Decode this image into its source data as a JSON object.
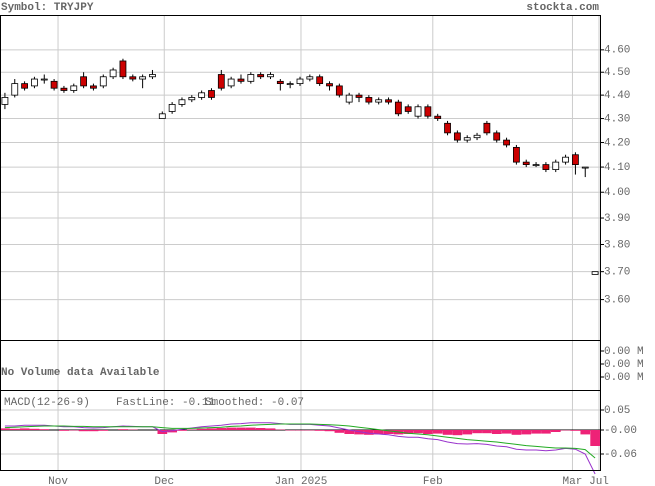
{
  "header": {
    "symbol": "Symbol: TRYJPY",
    "source": "stockta.com"
  },
  "chart_data": [
    {
      "type": "candlestick",
      "log_scale": true,
      "grid": true,
      "up_color": "#ffffff",
      "down_color": "#cc0000",
      "xlim": [
        -0.5,
        60.5
      ],
      "ylim": [
        3.46,
        4.76
      ],
      "xticks": [
        {
          "value": 5.4,
          "label": "Nov"
        },
        {
          "value": 16.2,
          "label": "Dec"
        },
        {
          "value": 30.1,
          "label": "Jan 2025"
        },
        {
          "value": 43.5,
          "label": "Feb"
        },
        {
          "value": 57.7,
          "label": "Mar"
        },
        {
          "value": 60.4,
          "label": "Jul"
        }
      ],
      "yticks": [
        {
          "value": 4.6,
          "label": "4.60"
        },
        {
          "value": 4.5,
          "label": "4.50"
        },
        {
          "value": 4.4,
          "label": "4.40"
        },
        {
          "value": 4.3,
          "label": "4.30"
        },
        {
          "value": 4.2,
          "label": "4.20"
        },
        {
          "value": 4.1,
          "label": "4.10"
        },
        {
          "value": 4.0,
          "label": "4.00"
        },
        {
          "value": 3.9,
          "label": "3.90"
        },
        {
          "value": 3.8,
          "label": "3.80"
        },
        {
          "value": 3.7,
          "label": "3.70"
        },
        {
          "value": 3.6,
          "label": "3.60"
        }
      ],
      "open": [
        4.36,
        4.4,
        4.45,
        4.44,
        4.47,
        4.46,
        4.43,
        4.42,
        4.48,
        4.44,
        4.44,
        4.48,
        4.55,
        4.48,
        4.47,
        4.48,
        4.3,
        4.33,
        4.36,
        4.38,
        4.39,
        4.42,
        4.49,
        4.44,
        4.47,
        4.46,
        4.49,
        4.48,
        4.46,
        4.45,
        4.45,
        4.47,
        4.48,
        4.45,
        4.44,
        4.37,
        4.4,
        4.39,
        4.37,
        4.38,
        4.37,
        4.35,
        4.31,
        4.35,
        4.31,
        4.28,
        4.24,
        4.21,
        4.22,
        4.28,
        4.24,
        4.21,
        4.18,
        4.12,
        4.11,
        4.11,
        4.09,
        4.12,
        4.15,
        4.1,
        3.69
      ],
      "high": [
        4.41,
        4.47,
        4.46,
        4.48,
        4.49,
        4.47,
        4.44,
        4.45,
        4.5,
        4.45,
        4.49,
        4.52,
        4.56,
        4.49,
        4.49,
        4.51,
        4.33,
        4.37,
        4.39,
        4.4,
        4.42,
        4.43,
        4.51,
        4.48,
        4.49,
        4.5,
        4.5,
        4.5,
        4.47,
        4.46,
        4.48,
        4.49,
        4.49,
        4.46,
        4.45,
        4.41,
        4.41,
        4.4,
        4.39,
        4.39,
        4.38,
        4.36,
        4.36,
        4.36,
        4.32,
        4.29,
        4.25,
        4.23,
        4.24,
        4.29,
        4.25,
        4.22,
        4.19,
        4.13,
        4.12,
        4.12,
        4.13,
        4.15,
        4.16,
        4.1,
        3.7
      ],
      "low": [
        4.34,
        4.39,
        4.42,
        4.43,
        4.45,
        4.42,
        4.41,
        4.41,
        4.43,
        4.42,
        4.43,
        4.47,
        4.47,
        4.46,
        4.43,
        4.47,
        4.3,
        4.32,
        4.35,
        4.37,
        4.38,
        4.38,
        4.42,
        4.43,
        4.45,
        4.45,
        4.47,
        4.47,
        4.42,
        4.43,
        4.44,
        4.46,
        4.44,
        4.42,
        4.39,
        4.36,
        4.37,
        4.36,
        4.36,
        4.36,
        4.31,
        4.32,
        4.3,
        4.3,
        4.29,
        4.23,
        4.2,
        4.2,
        4.21,
        4.23,
        4.2,
        4.18,
        4.11,
        4.1,
        4.1,
        4.08,
        4.08,
        4.11,
        4.07,
        4.06,
        3.69
      ],
      "close": [
        4.39,
        4.45,
        4.43,
        4.47,
        4.47,
        4.43,
        4.42,
        4.44,
        4.44,
        4.43,
        4.48,
        4.51,
        4.48,
        4.47,
        4.48,
        4.49,
        4.32,
        4.36,
        4.38,
        4.39,
        4.41,
        4.39,
        4.43,
        4.47,
        4.46,
        4.49,
        4.48,
        4.49,
        4.45,
        4.45,
        4.47,
        4.48,
        4.45,
        4.44,
        4.4,
        4.4,
        4.39,
        4.37,
        4.38,
        4.37,
        4.32,
        4.33,
        4.35,
        4.31,
        4.3,
        4.24,
        4.21,
        4.22,
        4.23,
        4.24,
        4.21,
        4.19,
        4.12,
        4.11,
        4.11,
        4.09,
        4.12,
        4.14,
        4.11,
        4.1,
        3.7
      ]
    },
    {
      "type": "volume",
      "note": "No Volume data Available",
      "ytick_labels": [
        "0.00 M",
        "0.00 M",
        "0.00 M"
      ]
    },
    {
      "type": "macd",
      "title": "MACD(12-26-9)",
      "ylim": [
        -0.1,
        0.1
      ],
      "yticks": [
        {
          "value": 0.05,
          "label": "0.05"
        },
        {
          "value": 0,
          "label": "-0.00"
        },
        {
          "value": -0.06,
          "label": "-0.06"
        }
      ],
      "histogram_color": "#ee2277",
      "histogram": [
        0.004,
        0.003,
        0.004,
        0.003,
        0.002,
        0,
        -0.002,
        -0.001,
        -0.003,
        -0.003,
        -0.002,
        0,
        0.002,
        0.001,
        0,
        0,
        -0.01,
        -0.006,
        -0.002,
        0.001,
        0.003,
        0.004,
        0.005,
        0.006,
        0.006,
        0.006,
        0.005,
        0.004,
        0.001,
        -0.001,
        -0.001,
        -0.001,
        -0.002,
        -0.003,
        -0.007,
        -0.01,
        -0.011,
        -0.012,
        -0.011,
        -0.01,
        -0.011,
        -0.01,
        -0.008,
        -0.01,
        -0.009,
        -0.012,
        -0.013,
        -0.011,
        -0.008,
        -0.008,
        -0.01,
        -0.009,
        -0.012,
        -0.011,
        -0.009,
        -0.009,
        -0.005,
        -0.001,
        -0.002,
        -0.011,
        -0.04
      ],
      "series": [
        {
          "name": "FastLine: -0.11",
          "color": "#9933cc",
          "values": [
            0.01,
            0.01,
            0.012,
            0.012,
            0.012,
            0.01,
            0.008,
            0.008,
            0.006,
            0.005,
            0.006,
            0.008,
            0.01,
            0.009,
            0.008,
            0.008,
            -0.004,
            -0.002,
            0.002,
            0.005,
            0.008,
            0.01,
            0.012,
            0.015,
            0.016,
            0.018,
            0.018,
            0.018,
            0.016,
            0.014,
            0.014,
            0.014,
            0.012,
            0.01,
            0.005,
            0.0,
            -0.004,
            -0.008,
            -0.01,
            -0.012,
            -0.016,
            -0.018,
            -0.018,
            -0.022,
            -0.024,
            -0.03,
            -0.034,
            -0.035,
            -0.034,
            -0.036,
            -0.04,
            -0.042,
            -0.048,
            -0.05,
            -0.05,
            -0.052,
            -0.05,
            -0.046,
            -0.048,
            -0.06,
            -0.11
          ]
        },
        {
          "name": "Smoothed: -0.07",
          "color": "#22aa22",
          "values": [
            0.006,
            0.007,
            0.008,
            0.009,
            0.01,
            0.01,
            0.01,
            0.009,
            0.009,
            0.008,
            0.008,
            0.008,
            0.008,
            0.008,
            0.008,
            0.008,
            0.006,
            0.004,
            0.004,
            0.004,
            0.005,
            0.006,
            0.007,
            0.009,
            0.01,
            0.012,
            0.013,
            0.014,
            0.015,
            0.015,
            0.015,
            0.015,
            0.014,
            0.013,
            0.012,
            0.01,
            0.007,
            0.004,
            0.001,
            -0.002,
            -0.005,
            -0.008,
            -0.01,
            -0.012,
            -0.015,
            -0.018,
            -0.021,
            -0.024,
            -0.026,
            -0.028,
            -0.03,
            -0.033,
            -0.036,
            -0.039,
            -0.041,
            -0.043,
            -0.045,
            -0.045,
            -0.046,
            -0.049,
            -0.07
          ]
        }
      ]
    }
  ]
}
